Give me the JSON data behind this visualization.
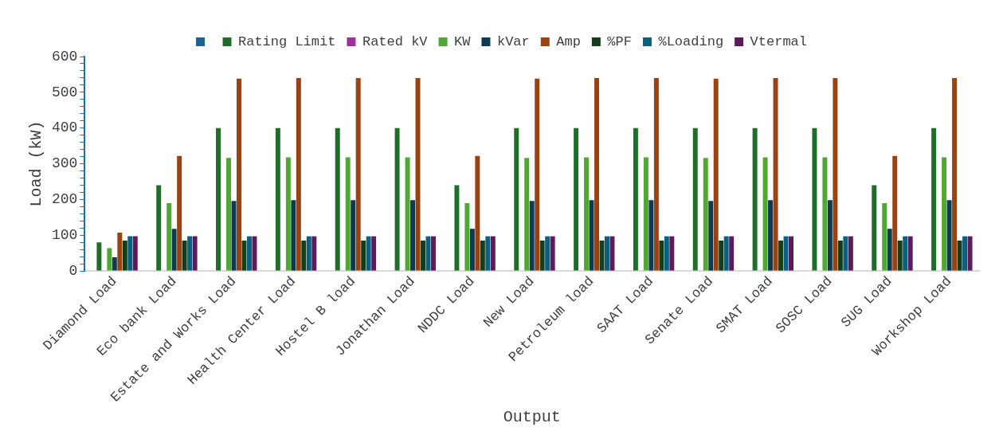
{
  "chart_data": {
    "type": "bar",
    "xlabel": "Output",
    "ylabel": "Load (kW)",
    "categories": [
      "Diamond Load",
      "Eco bank Load",
      "Estate and Works Load",
      "Health Center Load",
      "Hostel B load",
      "Jonathan Load",
      "NDDC Load",
      "New Load",
      "Petroleum load",
      "SAAT Load",
      "Senate Load",
      "SMAT Load",
      "SOSC Load",
      "SUG Load",
      "Workshop Load"
    ],
    "series": [
      {
        "color": "#1f6391",
        "values": [
          0,
          0,
          0,
          0,
          0,
          0,
          0,
          0,
          0,
          0,
          0,
          0,
          0,
          0,
          0
        ]
      },
      {
        "name": "Rating Limit",
        "color": "#1e6e2a",
        "values": [
          80,
          240,
          400,
          400,
          400,
          400,
          240,
          400,
          400,
          400,
          400,
          400,
          400,
          240,
          400
        ]
      },
      {
        "name": "Rated kV",
        "color": "#a0309a",
        "values": [
          0,
          0,
          0,
          0,
          0,
          0,
          0,
          0,
          0,
          0,
          0,
          0,
          0,
          0,
          0
        ]
      },
      {
        "name": "KW",
        "color": "#4ea832",
        "values": [
          64,
          190,
          316,
          318,
          318,
          318,
          190,
          316,
          318,
          318,
          316,
          318,
          318,
          190,
          318
        ]
      },
      {
        "name": "kVar",
        "color": "#0e3a52",
        "values": [
          38,
          118,
          196,
          198,
          198,
          198,
          118,
          196,
          198,
          198,
          196,
          198,
          198,
          118,
          198
        ]
      },
      {
        "name": "Amp",
        "color": "#9a4212",
        "values": [
          107,
          322,
          538,
          540,
          540,
          540,
          322,
          538,
          540,
          540,
          538,
          540,
          540,
          322,
          540
        ]
      },
      {
        "name": "%PF",
        "color": "#133f19",
        "values": [
          85,
          85,
          85,
          85,
          85,
          85,
          85,
          85,
          85,
          85,
          85,
          85,
          85,
          85,
          85
        ]
      },
      {
        "name": "%Loading",
        "color": "#0a6080",
        "values": [
          97,
          97,
          97,
          97,
          97,
          97,
          97,
          97,
          97,
          97,
          97,
          97,
          97,
          97,
          97
        ]
      },
      {
        "name": "Vtermal",
        "color": "#5e1b5c",
        "values": [
          97,
          97,
          97,
          97,
          97,
          97,
          97,
          97,
          97,
          97,
          97,
          97,
          97,
          97,
          97
        ]
      }
    ],
    "ylim": [
      0,
      600
    ],
    "yticks": [
      0,
      {
        "value": 20,
        "label": null
      },
      {
        "value": 40,
        "label": null
      },
      {
        "value": 60,
        "label": null
      },
      {
        "value": 80,
        "label": null
      },
      100,
      {
        "value": 120,
        "label": null
      },
      {
        "value": 140,
        "label": null
      },
      {
        "value": 160,
        "label": null
      },
      {
        "value": 180,
        "label": null
      },
      200,
      {
        "value": 220,
        "label": null
      },
      {
        "value": 240,
        "label": null
      },
      {
        "value": 260,
        "label": null
      },
      {
        "value": 280,
        "label": null
      },
      300,
      {
        "value": 320,
        "label": null
      },
      {
        "value": 340,
        "label": null
      },
      {
        "value": 360,
        "label": null
      },
      {
        "value": 380,
        "label": null
      },
      400,
      {
        "value": 420,
        "label": null
      },
      {
        "value": 440,
        "label": null
      },
      {
        "value": 460,
        "label": null
      },
      {
        "value": 480,
        "label": null
      },
      500,
      {
        "value": 520,
        "label": null
      },
      {
        "value": 540,
        "label": null
      },
      {
        "value": 560,
        "label": null
      },
      {
        "value": 580,
        "label": null
      },
      600
    ],
    "grid": false,
    "legend": "top"
  }
}
